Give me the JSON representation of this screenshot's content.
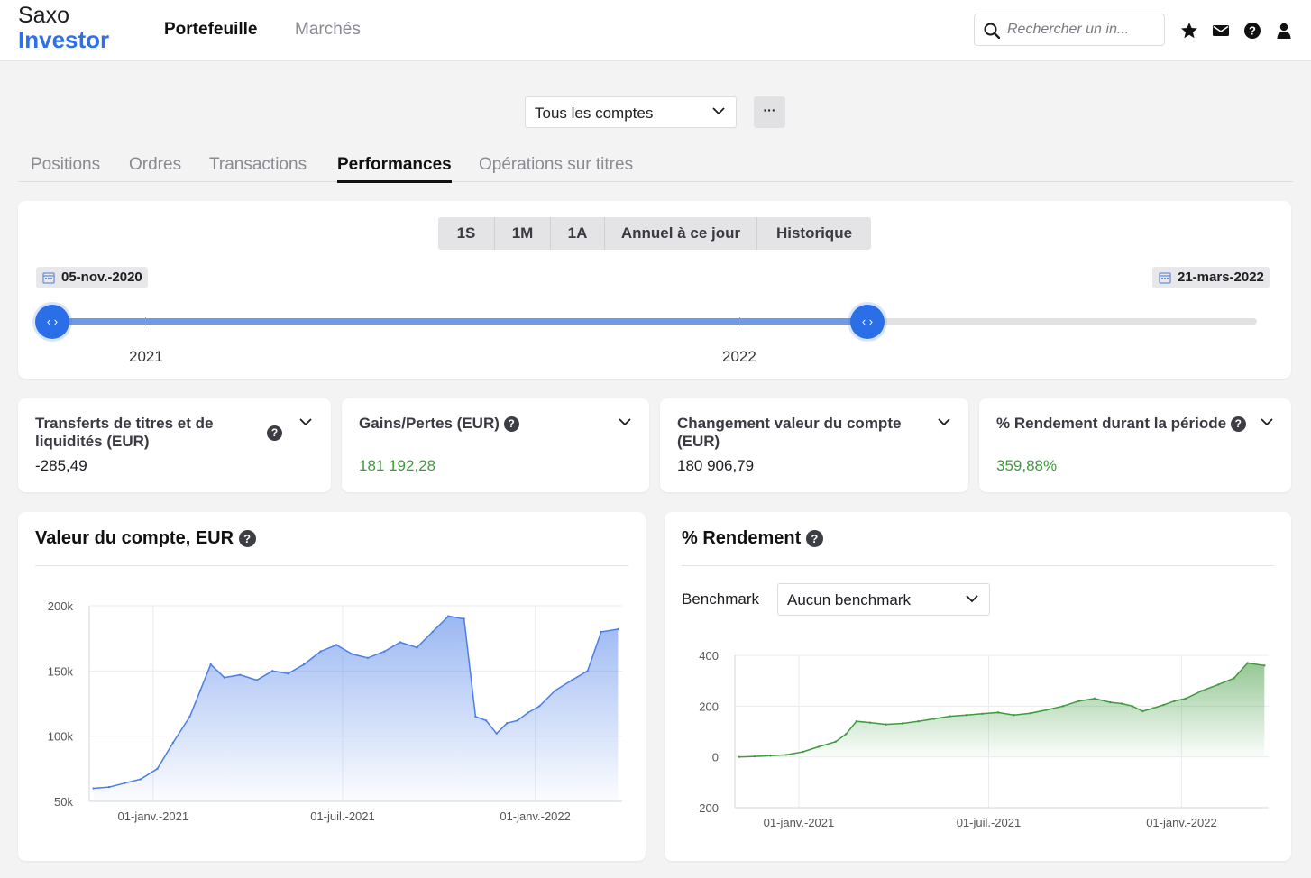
{
  "header": {
    "logo_line1": "Saxo",
    "logo_line2": "Investor",
    "nav_portfolio": "Portefeuille",
    "nav_markets": "Marchés",
    "search_placeholder": "Rechercher un in..."
  },
  "account_select": {
    "value": "Tous les comptes",
    "more_label": "···"
  },
  "tabs": [
    {
      "label": "Positions"
    },
    {
      "label": "Ordres"
    },
    {
      "label": "Transactions"
    },
    {
      "label": "Performances"
    },
    {
      "label": "Opérations sur titres"
    }
  ],
  "period": {
    "buttons": [
      {
        "label": "1S"
      },
      {
        "label": "1M"
      },
      {
        "label": "1A"
      },
      {
        "label": "Annuel à ce jour"
      },
      {
        "label": "Historique"
      }
    ],
    "start_date": "05-nov.-2020",
    "end_date": "21-mars-2022",
    "year_labels": [
      "2021",
      "2022"
    ]
  },
  "kpis": [
    {
      "title": "Transferts de titres et de liquidités (EUR)",
      "value": "-285,49"
    },
    {
      "title": "Gains/Pertes (EUR)",
      "value": "181 192,28"
    },
    {
      "title": "Changement valeur du compte (EUR)",
      "value": "180 906,79"
    },
    {
      "title": "% Rendement durant la période",
      "value": "359,88%"
    }
  ],
  "colors": {
    "accent": "#2f6fe8",
    "positive": "#3e9a3e",
    "blue_line": "#4a7ee8",
    "green_line": "#3e9a3e"
  },
  "chart_data": [
    {
      "type": "area",
      "title": "Valeur du compte, EUR",
      "x_ticks": [
        "01-janv.-2021",
        "01-juil.-2021",
        "01-janv.-2022"
      ],
      "y_ticks": [
        "200k",
        "150k",
        "100k",
        "50k"
      ],
      "ylim": [
        50000,
        200000
      ],
      "grid": true,
      "series": [
        {
          "x": [
            "2020-11-05",
            "2020-11-20",
            "2020-12-05",
            "2020-12-20",
            "2021-01-05",
            "2021-01-20",
            "2021-02-05",
            "2021-02-15",
            "2021-02-25",
            "2021-03-10",
            "2021-03-25",
            "2021-04-10",
            "2021-04-25",
            "2021-05-10",
            "2021-05-25",
            "2021-06-10",
            "2021-06-25",
            "2021-07-10",
            "2021-07-25",
            "2021-08-10",
            "2021-08-25",
            "2021-09-10",
            "2021-09-25",
            "2021-10-10",
            "2021-10-25",
            "2021-11-05",
            "2021-11-15",
            "2021-11-25",
            "2021-12-05",
            "2021-12-15",
            "2021-12-25",
            "2022-01-05",
            "2022-01-20",
            "2022-02-05",
            "2022-02-20",
            "2022-03-05",
            "2022-03-21"
          ],
          "values": [
            60000,
            61000,
            64000,
            67000,
            75000,
            95000,
            115000,
            135000,
            155000,
            145000,
            147000,
            143000,
            150000,
            148000,
            155000,
            165000,
            170000,
            163000,
            160000,
            165000,
            172000,
            168000,
            180000,
            192000,
            190000,
            115000,
            112000,
            102000,
            110000,
            112000,
            118000,
            123000,
            135000,
            143000,
            150000,
            180000,
            182000
          ]
        }
      ]
    },
    {
      "type": "area",
      "title": "% Rendement",
      "benchmark_label": "Benchmark",
      "benchmark_value": "Aucun benchmark",
      "x_ticks": [
        "01-janv.-2021",
        "01-juil.-2021",
        "01-janv.-2022"
      ],
      "y_ticks": [
        "400",
        "200",
        "0",
        "-200"
      ],
      "ylim": [
        -200,
        400
      ],
      "grid": true,
      "series": [
        {
          "x": [
            "2020-11-05",
            "2020-11-20",
            "2020-12-05",
            "2020-12-20",
            "2021-01-05",
            "2021-01-20",
            "2021-02-05",
            "2021-02-15",
            "2021-02-25",
            "2021-03-10",
            "2021-03-25",
            "2021-04-10",
            "2021-04-25",
            "2021-05-10",
            "2021-05-25",
            "2021-06-10",
            "2021-06-25",
            "2021-07-10",
            "2021-07-25",
            "2021-08-10",
            "2021-08-25",
            "2021-09-10",
            "2021-09-25",
            "2021-10-10",
            "2021-10-25",
            "2021-11-05",
            "2021-11-15",
            "2021-11-25",
            "2021-12-05",
            "2021-12-15",
            "2021-12-25",
            "2022-01-05",
            "2022-01-20",
            "2022-02-05",
            "2022-02-20",
            "2022-03-05",
            "2022-03-21"
          ],
          "values": [
            0,
            2,
            5,
            8,
            20,
            40,
            60,
            90,
            140,
            135,
            128,
            132,
            140,
            150,
            160,
            165,
            170,
            175,
            165,
            172,
            185,
            200,
            220,
            230,
            215,
            210,
            200,
            180,
            192,
            205,
            220,
            230,
            260,
            285,
            310,
            370,
            360
          ]
        }
      ]
    }
  ]
}
